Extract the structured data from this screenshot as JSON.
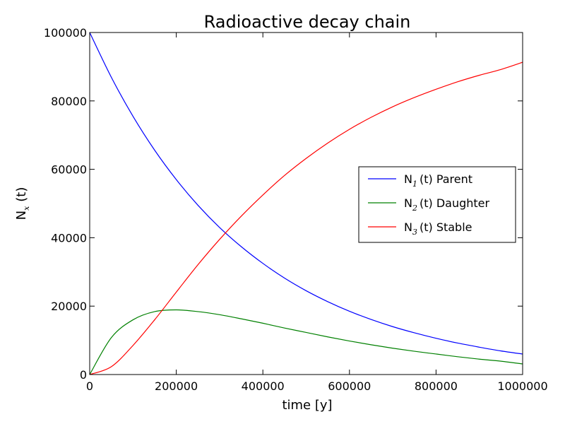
{
  "chart_data": {
    "type": "line",
    "title": "Radioactive decay chain",
    "xlabel": "time [y]",
    "ylabel": {
      "base": "N",
      "sub": "x",
      "suffix": "(t)"
    },
    "xlim": [
      0,
      1000000
    ],
    "ylim": [
      0,
      100000
    ],
    "xticks": [
      0,
      200000,
      400000,
      600000,
      800000,
      1000000
    ],
    "yticks": [
      0,
      20000,
      40000,
      60000,
      80000,
      100000
    ],
    "legend_position": "center-right",
    "x": [
      0,
      50000,
      100000,
      150000,
      200000,
      250000,
      300000,
      350000,
      400000,
      450000,
      500000,
      550000,
      600000,
      650000,
      700000,
      750000,
      800000,
      850000,
      900000,
      950000,
      1000000
    ],
    "series": [
      {
        "name": "N1(t) Parent",
        "label_base": "N",
        "label_sub": "1",
        "label_rest": "(t) Parent",
        "color": "#0000ff",
        "values": [
          100000,
          86900,
          75500,
          65600,
          57000,
          49500,
          43000,
          37400,
          32500,
          28200,
          24500,
          21300,
          18500,
          16100,
          14000,
          12200,
          10600,
          9200,
          8000,
          6900,
          6000
        ]
      },
      {
        "name": "N2(t) Daughter",
        "label_base": "N",
        "label_sub": "2",
        "label_rest": "(t) Daughter",
        "color": "#008000",
        "values": [
          0,
          10800,
          16000,
          18400,
          18900,
          18400,
          17500,
          16300,
          15000,
          13600,
          12300,
          11000,
          9800,
          8700,
          7700,
          6800,
          6000,
          5200,
          4500,
          3900,
          3100
        ]
      },
      {
        "name": "N3(t) Stable",
        "label_base": "N",
        "label_sub": "3",
        "label_rest": "(t) Stable",
        "color": "#ff0000",
        "values": [
          0,
          2300,
          8500,
          16000,
          24100,
          32100,
          39500,
          46300,
          52500,
          58200,
          63200,
          67700,
          71700,
          75200,
          78300,
          81000,
          83400,
          85600,
          87500,
          89200,
          91300
        ]
      }
    ]
  }
}
